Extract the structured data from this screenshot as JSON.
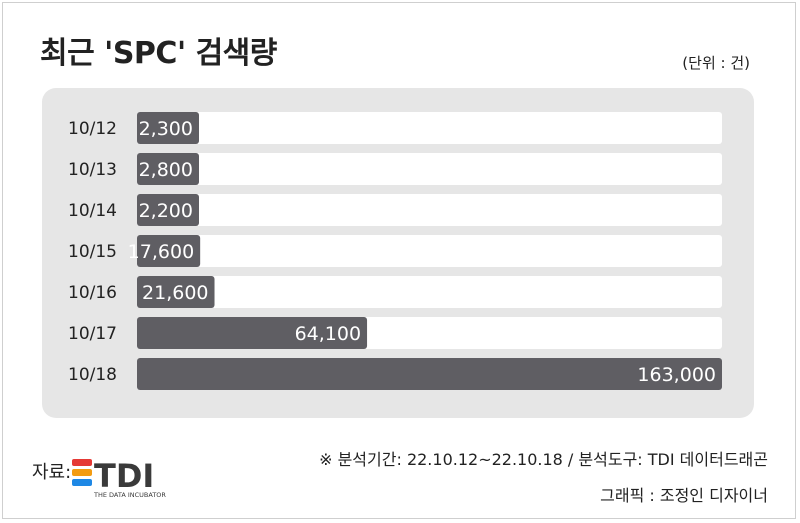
{
  "chart_data": {
    "type": "bar",
    "orientation": "horizontal",
    "title": "최근 'SPC' 검색량",
    "unit": "(단위 : 건)",
    "categories": [
      "10/12",
      "10/13",
      "10/14",
      "10/15",
      "10/16",
      "10/17",
      "10/18"
    ],
    "values": [
      2300,
      2800,
      2200,
      17600,
      21600,
      64100,
      163000
    ],
    "value_labels": [
      "2,300",
      "2,800",
      "2,200",
      "17,600",
      "21,600",
      "64,100",
      "163,000"
    ],
    "xlim": [
      0,
      163000
    ],
    "grid": false,
    "legend": "none",
    "colors": {
      "bar": "#5f5e63",
      "track": "#ffffff",
      "panel": "#e6e6e6",
      "label_on_bar": "#ffffff"
    }
  },
  "footer": {
    "note": "※ 분석기간: 22.10.12~22.10.18 / 분석도구: TDI 데이터드래곤",
    "credit": "그래픽 : 조정인 디자이너",
    "source_label": "자료:"
  },
  "logo": {
    "text": "TDI",
    "tagline": "THE DATA INCUBATOR",
    "colors": [
      "#e53935",
      "#f39c12",
      "#1e88e5"
    ],
    "text_color": "#3a3a3a"
  }
}
